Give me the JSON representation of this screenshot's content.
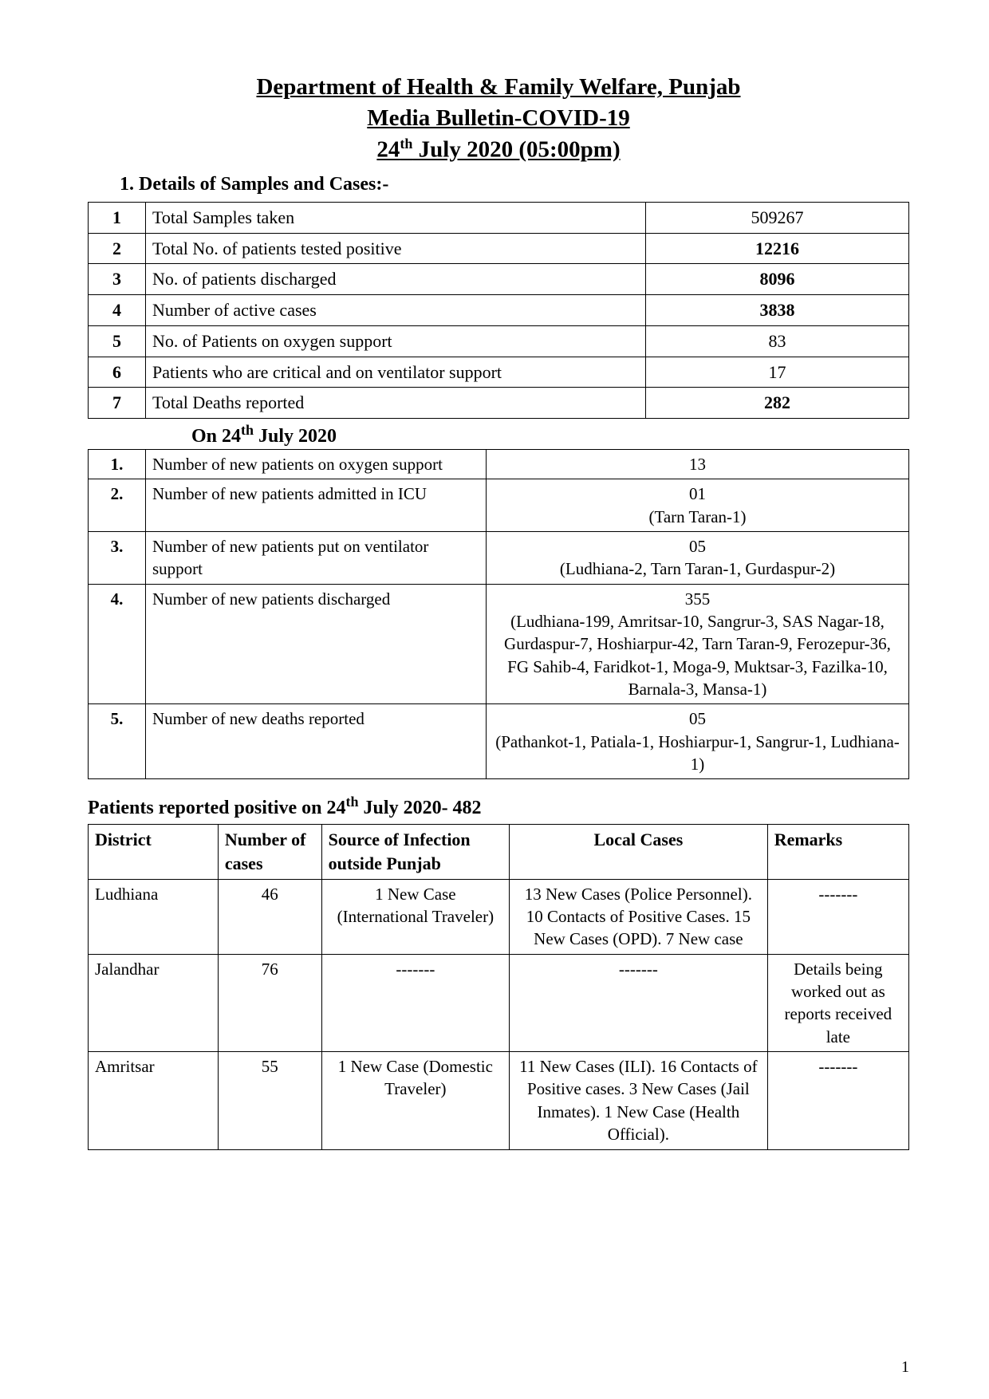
{
  "title": {
    "line1": "Department of Health & Family Welfare, Punjab",
    "line2": "Media Bulletin-COVID-19",
    "line3_pre": "24",
    "line3_sup": "th",
    "line3_post": " July 2020 (05:00pm)"
  },
  "section1_heading": "1.  Details of Samples and Cases:-",
  "summary": [
    {
      "n": "1",
      "label": "Total Samples taken",
      "value": "509267",
      "bold": false
    },
    {
      "n": "2",
      "label": "Total No. of patients tested positive",
      "value": "12216",
      "bold": true
    },
    {
      "n": "3",
      "label": "No. of patients discharged",
      "value": "8096",
      "bold": true
    },
    {
      "n": "4",
      "label": "Number of active cases",
      "value": "3838",
      "bold": true
    },
    {
      "n": "5",
      "label": "No. of Patients on oxygen support",
      "value": "83",
      "bold": false
    },
    {
      "n": "6",
      "label": "Patients who are critical and on ventilator support",
      "value": "17",
      "bold": false
    },
    {
      "n": "7",
      "label": "Total Deaths reported",
      "value": "282",
      "bold": true
    }
  ],
  "subheader_pre": "On 24",
  "subheader_sup": "th",
  "subheader_post": " July 2020",
  "daily": [
    {
      "n": "1.",
      "label": "Number of new patients on oxygen support",
      "value": "13"
    },
    {
      "n": "2.",
      "label": "Number of new patients admitted in ICU",
      "value": "01\n(Tarn Taran-1)"
    },
    {
      "n": "3.",
      "label": "Number of new patients put on ventilator support",
      "value": "05\n(Ludhiana-2, Tarn Taran-1, Gurdaspur-2)"
    },
    {
      "n": "4.",
      "label": "Number of new patients discharged",
      "value": "355\n(Ludhiana-199, Amritsar-10, Sangrur-3, SAS Nagar-18, Gurdaspur-7, Hoshiarpur-42, Tarn Taran-9, Ferozepur-36, FG Sahib-4, Faridkot-1, Moga-9, Muktsar-3, Fazilka-10, Barnala-3, Mansa-1)"
    },
    {
      "n": "5.",
      "label": "Number of new deaths reported",
      "value": "05\n(Pathankot-1, Patiala-1, Hoshiarpur-1, Sangrur-1, Ludhiana-1)"
    }
  ],
  "positive_heading_pre": "Patients reported positive on 24",
  "positive_heading_sup": "th",
  "positive_heading_post": " July 2020- 482",
  "positive_columns": {
    "district": "District",
    "number": "Number of cases",
    "source": "Source of Infection outside Punjab",
    "local": "Local Cases",
    "remarks": "Remarks"
  },
  "positive_rows": [
    {
      "district": "Ludhiana",
      "number": "46",
      "source": "1 New Case (International Traveler)",
      "local": "13 New Cases (Police Personnel). 10 Contacts of Positive Cases. 15 New Cases (OPD). 7 New case",
      "remarks": "-------"
    },
    {
      "district": "Jalandhar",
      "number": "76",
      "source": "-------",
      "local": "-------",
      "remarks": "Details being worked out as reports received late"
    },
    {
      "district": "Amritsar",
      "number": "55",
      "source": "1 New Case (Domestic Traveler)",
      "local": "11 New Cases (ILI). 16 Contacts of Positive cases. 3 New Cases (Jail Inmates). 1 New Case (Health Official).",
      "remarks": "-------"
    }
  ],
  "page_number": "1"
}
